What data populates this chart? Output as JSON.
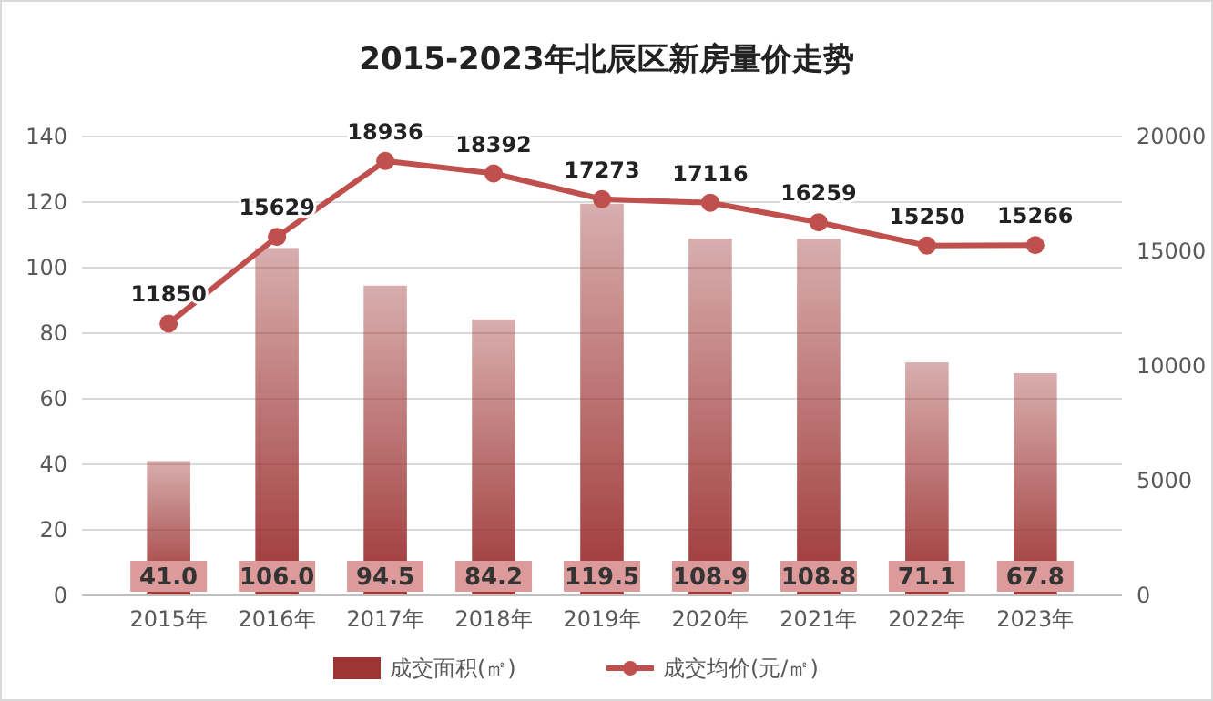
{
  "chart_data": {
    "type": "bar",
    "title": "2015-2023年北辰区新房量价走势",
    "categories": [
      "2015年",
      "2016年",
      "2017年",
      "2018年",
      "2019年",
      "2020年",
      "2021年",
      "2022年",
      "2023年"
    ],
    "series": [
      {
        "name": "成交面积(㎡)",
        "color": "#9e3535",
        "values": [
          41.0,
          106.0,
          94.5,
          84.2,
          119.5,
          108.9,
          108.8,
          71.1,
          67.8
        ],
        "value_labels": [
          "41.0",
          "106.0",
          "94.5",
          "84.2",
          "119.5",
          "108.9",
          "108.8",
          "71.1",
          "67.8"
        ]
      },
      {
        "name": "成交均价(元/㎡)",
        "type": "line",
        "axis": "y2",
        "color": "#c0504d",
        "values": [
          11850,
          15629,
          18936,
          18392,
          17273,
          17116,
          16259,
          15250,
          15266
        ],
        "value_labels": [
          "11850",
          "15629",
          "18936",
          "18392",
          "17273",
          "17116",
          "16259",
          "15250",
          "15266"
        ]
      }
    ],
    "ylim": [
      0,
      140
    ],
    "yticks": [
      0,
      20,
      40,
      60,
      80,
      100,
      120,
      140
    ],
    "y2lim": [
      0,
      20000
    ],
    "y2ticks": [
      0,
      5000,
      10000,
      15000,
      20000
    ],
    "grid": "y",
    "legend": "bottom",
    "marker": "circle",
    "line_style": "solid"
  }
}
